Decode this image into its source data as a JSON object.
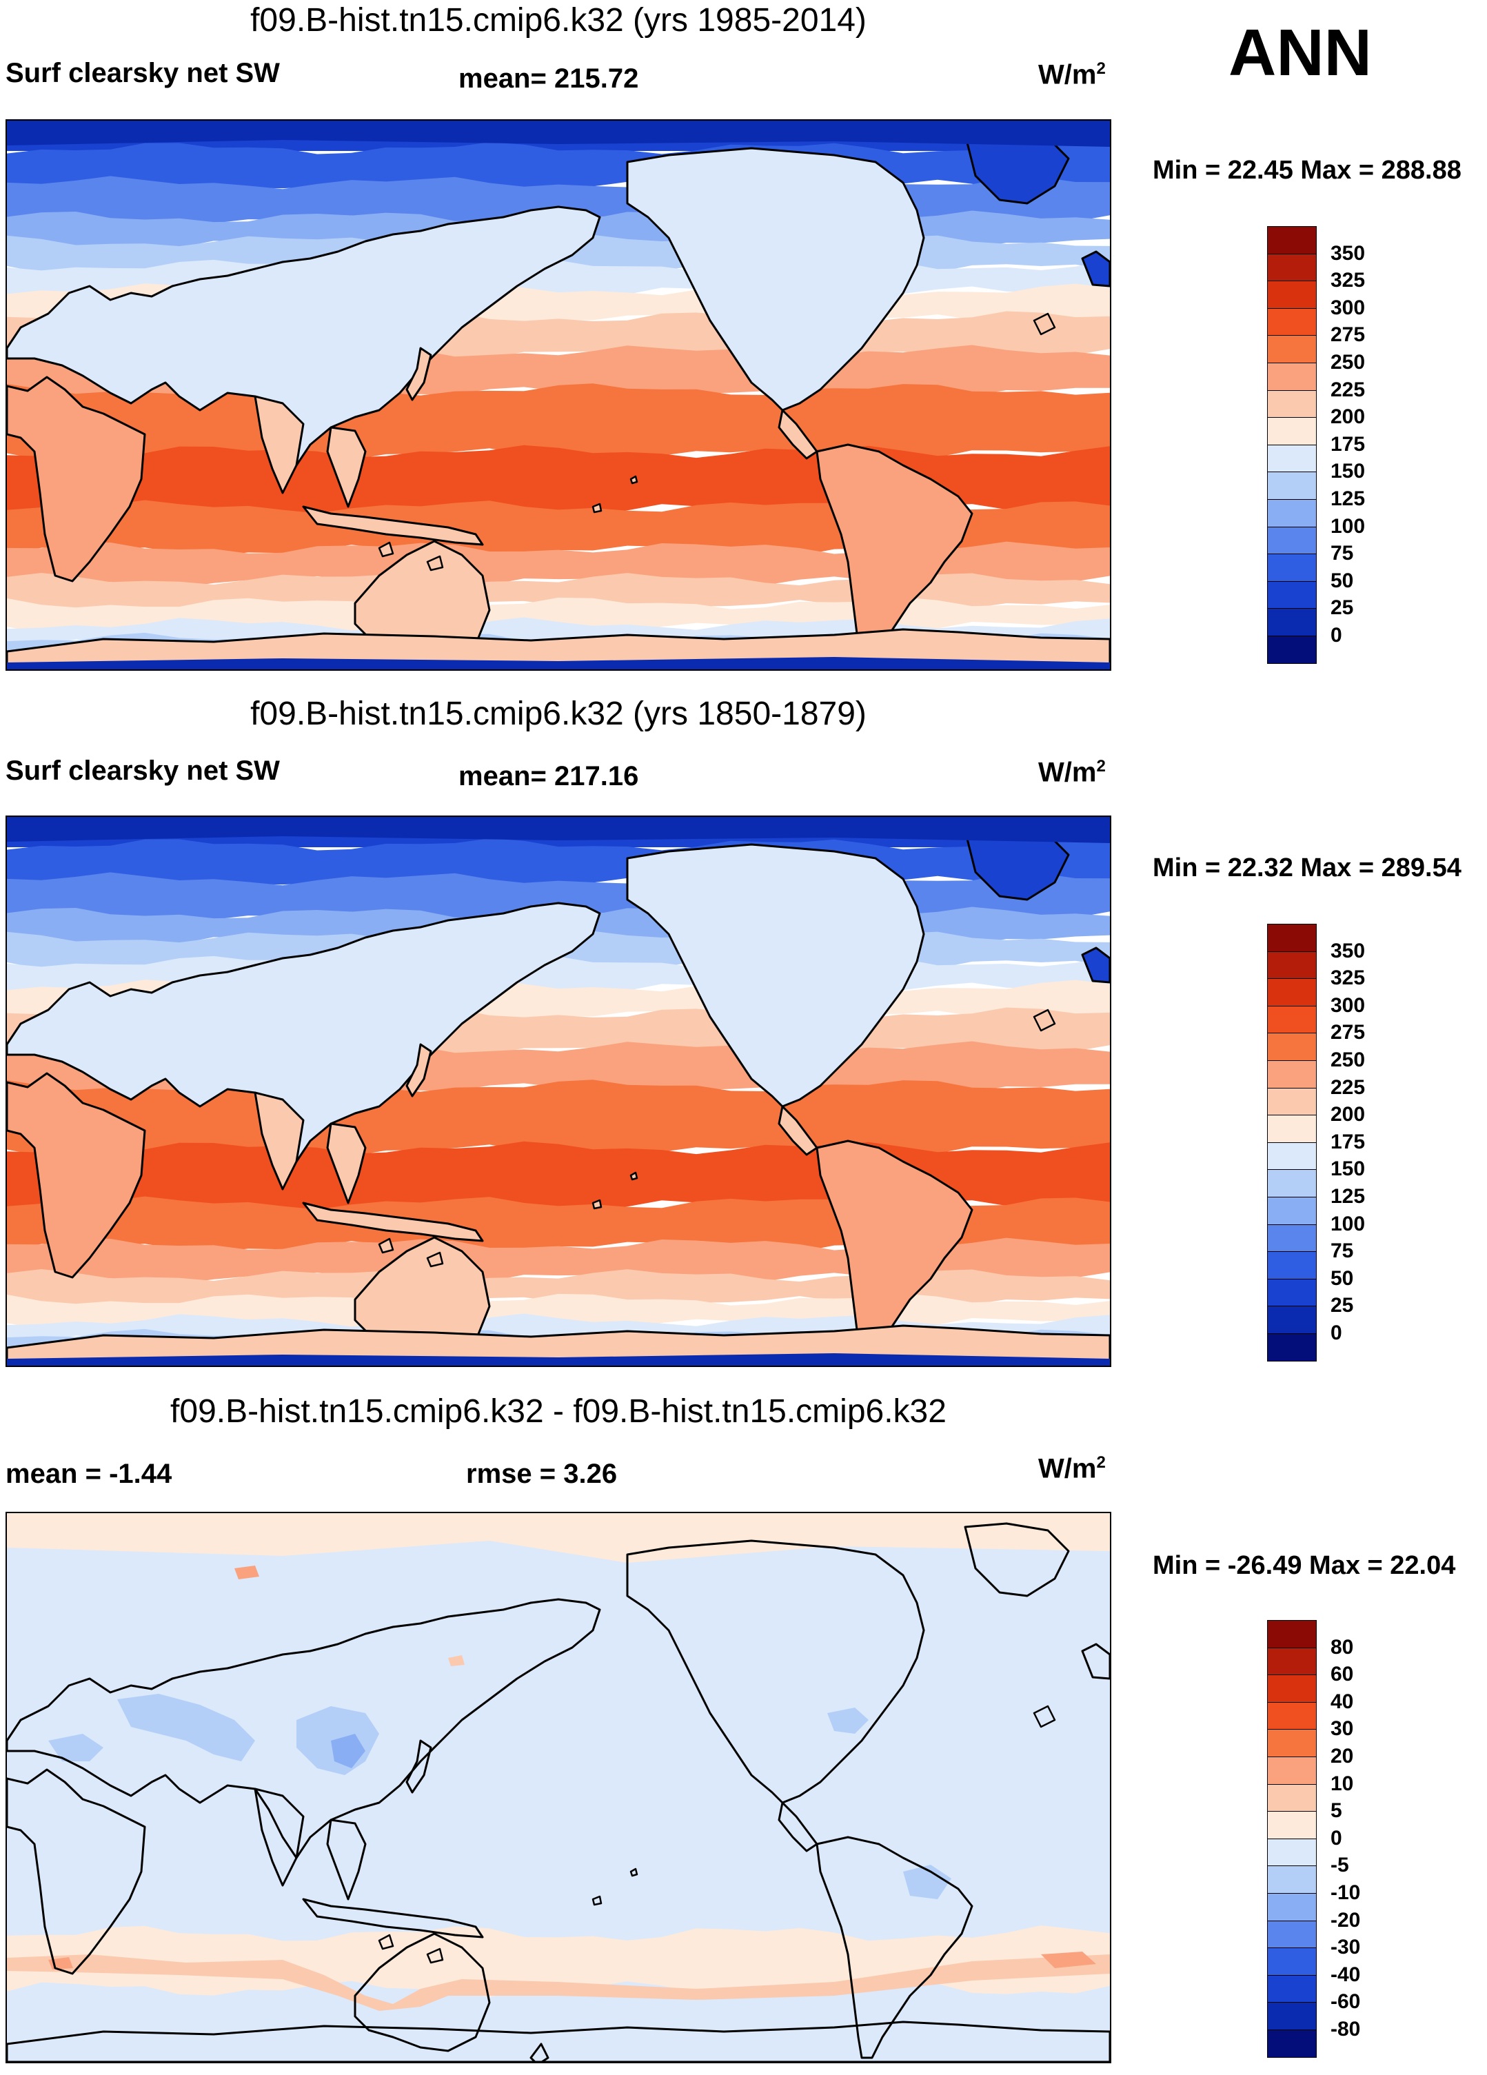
{
  "season": "ANN",
  "panels": [
    {
      "title": "f09.B-hist.tn15.cmip6.k32 (yrs 1985-2014)",
      "left_label": "Surf clearsky net SW",
      "center_label": "mean= 215.72",
      "unit_base": "W/m",
      "unit_exp": "2",
      "minmax": "Min =  22.45 Max = 288.88",
      "colorbar": {
        "labels": [
          "350",
          "325",
          "300",
          "275",
          "250",
          "225",
          "200",
          "175",
          "150",
          "125",
          "100",
          "75",
          "50",
          "25",
          "0"
        ],
        "colors": [
          "#8b0a05",
          "#b31d0a",
          "#d8330e",
          "#f04f1f",
          "#f6743d",
          "#f9a27d",
          "#fbc9ae",
          "#fdeadb",
          "#dbe9fb",
          "#b3cff8",
          "#89aef3",
          "#5a85ec",
          "#2f5ee3",
          "#1842cf",
          "#0a2bb0",
          "#030e7a"
        ]
      },
      "map_type": "climatology"
    },
    {
      "title": "f09.B-hist.tn15.cmip6.k32 (yrs 1850-1879)",
      "left_label": "Surf clearsky net SW",
      "center_label": "mean= 217.16",
      "unit_base": "W/m",
      "unit_exp": "2",
      "minmax": "Min =  22.32 Max = 289.54",
      "colorbar": {
        "labels": [
          "350",
          "325",
          "300",
          "275",
          "250",
          "225",
          "200",
          "175",
          "150",
          "125",
          "100",
          "75",
          "50",
          "25",
          "0"
        ],
        "colors": [
          "#8b0a05",
          "#b31d0a",
          "#d8330e",
          "#f04f1f",
          "#f6743d",
          "#f9a27d",
          "#fbc9ae",
          "#fdeadb",
          "#dbe9fb",
          "#b3cff8",
          "#89aef3",
          "#5a85ec",
          "#2f5ee3",
          "#1842cf",
          "#0a2bb0",
          "#030e7a"
        ]
      },
      "map_type": "climatology"
    },
    {
      "title": "f09.B-hist.tn15.cmip6.k32 - f09.B-hist.tn15.cmip6.k32",
      "left_label": "mean =  -1.44",
      "center_label": "rmse =   3.26",
      "unit_base": "W/m",
      "unit_exp": "2",
      "minmax": "Min = -26.49 Max =  22.04",
      "colorbar": {
        "labels": [
          "80",
          "60",
          "40",
          "30",
          "20",
          "10",
          "5",
          "0",
          "-5",
          "-10",
          "-20",
          "-30",
          "-40",
          "-60",
          "-80"
        ],
        "colors": [
          "#8b0a05",
          "#b31d0a",
          "#d8330e",
          "#f04f1f",
          "#f6743d",
          "#f9a27d",
          "#fbc9ae",
          "#fdeadb",
          "#dbe9fb",
          "#b3cff8",
          "#89aef3",
          "#5a85ec",
          "#2f5ee3",
          "#1842cf",
          "#0a2bb0",
          "#030e7a"
        ]
      },
      "map_type": "difference"
    }
  ]
}
